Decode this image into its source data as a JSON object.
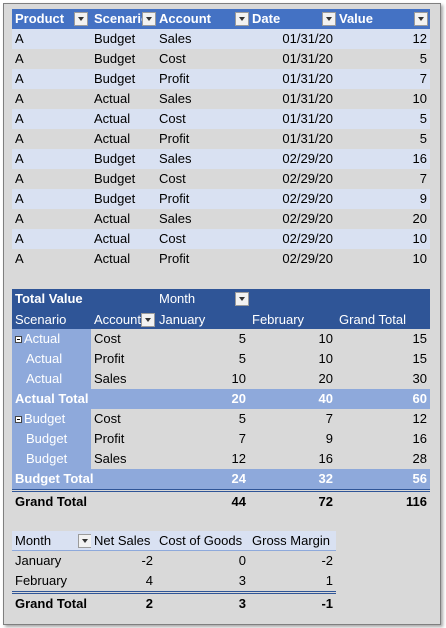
{
  "table1": {
    "headers": [
      "Product",
      "Scenario",
      "Account",
      "Date",
      "Value"
    ],
    "rows": [
      [
        "A",
        "Budget",
        "Sales",
        "01/31/20",
        "12"
      ],
      [
        "A",
        "Budget",
        "Cost",
        "01/31/20",
        "5"
      ],
      [
        "A",
        "Budget",
        "Profit",
        "01/31/20",
        "7"
      ],
      [
        "A",
        "Actual",
        "Sales",
        "01/31/20",
        "10"
      ],
      [
        "A",
        "Actual",
        "Cost",
        "01/31/20",
        "5"
      ],
      [
        "A",
        "Actual",
        "Profit",
        "01/31/20",
        "5"
      ],
      [
        "A",
        "Budget",
        "Sales",
        "02/29/20",
        "16"
      ],
      [
        "A",
        "Budget",
        "Cost",
        "02/29/20",
        "7"
      ],
      [
        "A",
        "Budget",
        "Profit",
        "02/29/20",
        "9"
      ],
      [
        "A",
        "Actual",
        "Sales",
        "02/29/20",
        "20"
      ],
      [
        "A",
        "Actual",
        "Cost",
        "02/29/20",
        "10"
      ],
      [
        "A",
        "Actual",
        "Profit",
        "02/29/20",
        "10"
      ]
    ]
  },
  "pivot": {
    "title": "Total Value",
    "col_field": "Month",
    "row_field1": "Scenario",
    "row_field2": "Account",
    "cols": [
      "January",
      "February",
      "Grand Total"
    ],
    "groups": [
      {
        "name": "Actual",
        "rows": [
          [
            "Cost",
            "5",
            "10",
            "15"
          ],
          [
            "Profit",
            "5",
            "10",
            "15"
          ],
          [
            "Sales",
            "10",
            "20",
            "30"
          ]
        ],
        "total_label": "Actual Total",
        "total": [
          "20",
          "40",
          "60"
        ]
      },
      {
        "name": "Budget",
        "rows": [
          [
            "Cost",
            "5",
            "7",
            "12"
          ],
          [
            "Profit",
            "7",
            "9",
            "16"
          ],
          [
            "Sales",
            "12",
            "16",
            "28"
          ]
        ],
        "total_label": "Budget Total",
        "total": [
          "24",
          "32",
          "56"
        ]
      }
    ],
    "grand_label": "Grand Total",
    "grand": [
      "44",
      "72",
      "116"
    ]
  },
  "table2": {
    "headers": [
      "Month",
      "Net Sales",
      "Cost of Goods",
      "Gross Margin"
    ],
    "rows": [
      [
        "January",
        "-2",
        "0",
        "-2"
      ],
      [
        "February",
        "4",
        "3",
        "1"
      ]
    ],
    "total_label": "Grand Total",
    "total": [
      "2",
      "3",
      "-1"
    ]
  }
}
